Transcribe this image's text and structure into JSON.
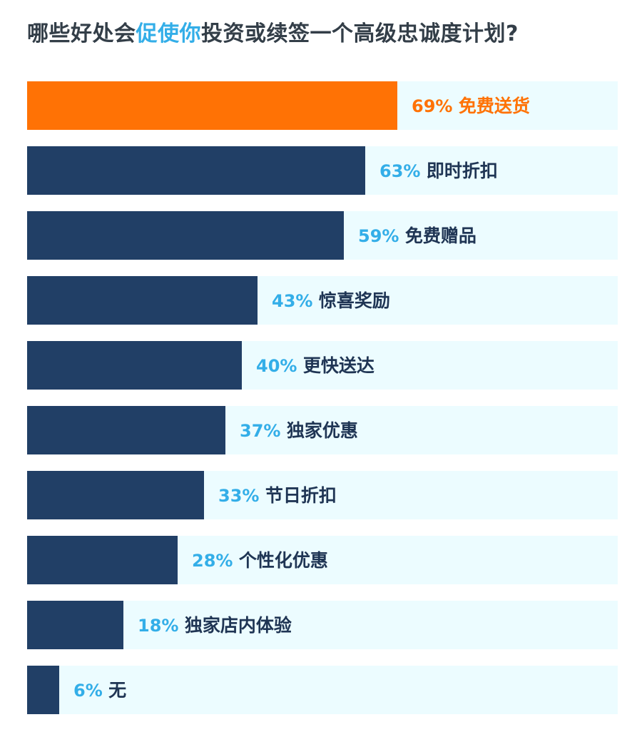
{
  "title": {
    "part1": "哪些好处会",
    "highlight": "促使你",
    "part2": "投资或续签一个高级忠诚度计划?"
  },
  "colors": {
    "highlight_bar": "#ff7205",
    "bar": "#213f66",
    "track": "#ecfcff",
    "percent_text": "#33aee8",
    "label_text": "#1f3554",
    "title_text": "#333e48",
    "title_highlight": "#33aee8"
  },
  "chart_data": {
    "type": "bar",
    "orientation": "horizontal",
    "title": "哪些好处会促使你投资或续签一个高级忠诚度计划?",
    "unit": "%",
    "xlim": [
      0,
      100
    ],
    "grid": false,
    "legend": "none",
    "highlight_index": 0,
    "categories": [
      "免费送货",
      "即时折扣",
      "免费赠品",
      "惊喜奖励",
      "更快送达",
      "独家优惠",
      "节日折扣",
      "个性化优惠",
      "独家店内体验",
      "无"
    ],
    "values": [
      69,
      63,
      59,
      43,
      40,
      37,
      33,
      28,
      18,
      6
    ]
  }
}
